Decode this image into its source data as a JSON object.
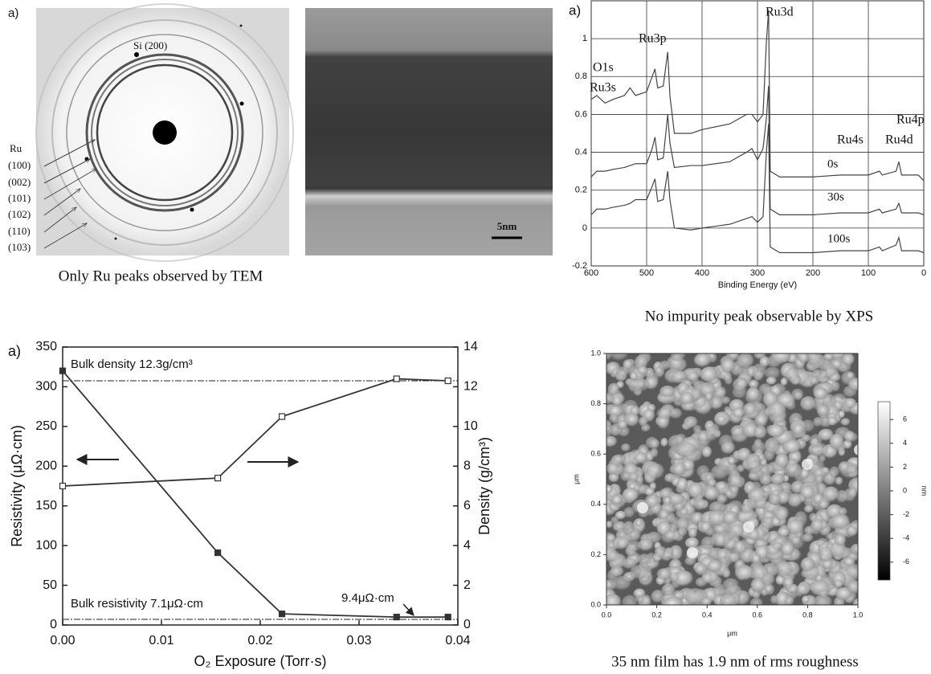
{
  "diffraction": {
    "panel_label": "a)",
    "labels": [
      "Si (200)",
      "Ru",
      "(100)",
      "(002)",
      "(101)",
      "(102)",
      "(110)",
      "(103)"
    ],
    "caption": "Only Ru peaks observed by TEM"
  },
  "tem": {
    "scale_bar": "5nm"
  },
  "chart_data": [
    {
      "type": "line",
      "panel_label": "a)",
      "xlabel": "Binding Energy (eV)",
      "x": [
        600,
        590,
        575,
        560,
        540,
        530,
        520,
        500,
        490,
        485,
        480,
        470,
        462,
        458,
        450,
        420,
        400,
        350,
        320,
        310,
        300,
        290,
        284,
        280,
        277,
        260,
        200,
        150,
        100,
        80,
        75,
        50,
        45,
        40,
        10,
        0
      ],
      "series": [
        {
          "name": "0s",
          "color": "#444",
          "values": [
            0.68,
            0.7,
            0.66,
            0.68,
            0.7,
            0.74,
            0.7,
            0.72,
            0.8,
            0.84,
            0.74,
            0.75,
            0.93,
            0.7,
            0.5,
            0.5,
            0.52,
            0.55,
            0.6,
            0.6,
            0.56,
            0.6,
            0.98,
            1.15,
            0.3,
            0.27,
            0.27,
            0.28,
            0.28,
            0.3,
            0.28,
            0.3,
            0.35,
            0.28,
            0.28,
            0.25
          ]
        },
        {
          "name": "30s",
          "color": "#444",
          "values": [
            0.27,
            0.3,
            0.3,
            0.31,
            0.32,
            0.33,
            0.34,
            0.34,
            0.42,
            0.48,
            0.36,
            0.37,
            0.6,
            0.45,
            0.32,
            0.33,
            0.33,
            0.35,
            0.4,
            0.42,
            0.36,
            0.42,
            0.58,
            0.75,
            0.1,
            0.07,
            0.07,
            0.08,
            0.08,
            0.1,
            0.08,
            0.1,
            0.13,
            0.08,
            0.08,
            0.07
          ]
        },
        {
          "name": "100s",
          "color": "#444",
          "values": [
            0.07,
            0.1,
            0.1,
            0.11,
            0.12,
            0.13,
            0.15,
            0.15,
            0.22,
            0.26,
            0.14,
            0.15,
            0.3,
            0.15,
            0,
            -0.01,
            0,
            0.02,
            0.05,
            0.06,
            0.03,
            0.06,
            0.4,
            0.55,
            -0.1,
            -0.13,
            -0.13,
            -0.12,
            -0.12,
            -0.1,
            -0.12,
            -0.09,
            -0.05,
            -0.12,
            -0.12,
            -0.13
          ]
        }
      ],
      "xlim": [
        600,
        0
      ],
      "ylim": [
        -0.2,
        1.2
      ],
      "xticks": [
        600,
        500,
        400,
        300,
        200,
        100,
        0
      ],
      "yticks": [
        -0.2,
        0,
        0.2,
        0.4,
        0.6,
        0.8,
        1
      ],
      "grid": true,
      "annotations": [
        "Ru3d",
        "Ru3p",
        "O1s",
        "Ru3s",
        "Ru4p",
        "Ru4s",
        "Ru4d"
      ],
      "caption": "No impurity peak observable by XPS"
    },
    {
      "type": "dual_axis_line",
      "panel_label": "a)",
      "xlabel": "O₂ Exposure (Torr·s)",
      "ylabel": "Resistivity  (μΩ·cm)",
      "y2label": "Density (g/cm³)",
      "x": [
        0,
        0.0157,
        0.0222,
        0.0338,
        0.039
      ],
      "series": [
        {
          "color": "#333",
          "marker": "filled",
          "values": [
            320,
            91,
            14,
            10,
            10
          ]
        },
        {
          "color": "#333",
          "marker": "open",
          "axis": "y2",
          "values": [
            7,
            7.4,
            10.5,
            12.4,
            12.3
          ]
        }
      ],
      "xlim": [
        0,
        0.04
      ],
      "ylim": [
        0,
        350
      ],
      "y2lim": [
        0,
        14
      ],
      "xticks": [
        {
          "value": 0,
          "label": "0.00"
        },
        {
          "value": 0.01,
          "label": "0.01"
        },
        {
          "value": 0.02,
          "label": "0.02"
        },
        {
          "value": 0.03,
          "label": "0.03"
        },
        {
          "value": 0.04,
          "label": "0.04"
        }
      ],
      "yticks": [
        0,
        50,
        100,
        150,
        200,
        250,
        300,
        350
      ],
      "y2ticks": [
        0,
        2,
        4,
        6,
        8,
        10,
        12,
        14
      ],
      "reference_lines": [
        {
          "value": 12.3,
          "axis": "y2",
          "label": "Bulk density 12.3g/cm³"
        },
        {
          "value": 7.1,
          "label": "Bulk resistivity 7.1μΩ·cm"
        }
      ],
      "annotations": [
        "9.4μΩ·cm"
      ]
    },
    {
      "type": "heatmap",
      "xlabel": "μm",
      "ylabel": "μm",
      "xlim": [
        0,
        1
      ],
      "ylim": [
        0,
        1
      ],
      "xticks": [
        {
          "value": 0,
          "label": "0.0"
        },
        0.2,
        0.4,
        0.6,
        0.8,
        {
          "value": 1,
          "label": "1.0"
        }
      ],
      "yticks": [
        {
          "value": 0,
          "label": "0.0"
        },
        0.2,
        0.4,
        0.6,
        0.8,
        {
          "value": 1,
          "label": "1.0"
        }
      ],
      "zlim": [
        -7.5,
        7.5
      ],
      "zticks": [
        6,
        4,
        2,
        0,
        -2,
        -4,
        -6
      ],
      "zlabel": "nm",
      "caption": "35 nm film has 1.9 nm of rms roughness"
    }
  ]
}
